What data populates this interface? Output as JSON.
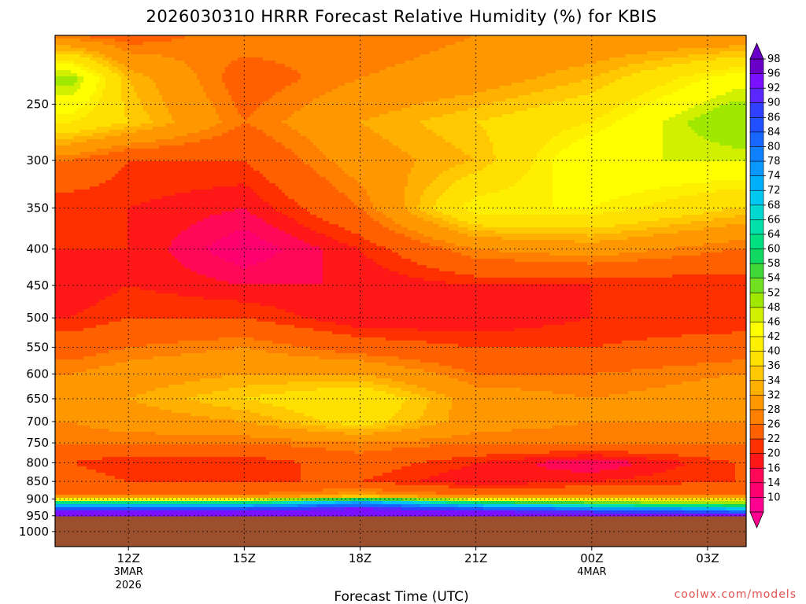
{
  "title": "2026030310 HRRR Forecast Relative Humidity (%) for KBIS",
  "credit": "coolwx.com/models",
  "colors": {
    "ground": "#9c4f2c",
    "frame": "#000000"
  },
  "chart_data": {
    "type": "heatmap",
    "title": "2026030310 HRRR Forecast Relative Humidity (%) for KBIS",
    "xlabel": "Forecast Time (UTC)",
    "ylabel": "",
    "x_ticks": [
      {
        "label": "12Z",
        "sub": [
          "3MAR",
          "2026"
        ],
        "hour": 12
      },
      {
        "label": "15Z",
        "sub": [],
        "hour": 15
      },
      {
        "label": "18Z",
        "sub": [],
        "hour": 18
      },
      {
        "label": "21Z",
        "sub": [],
        "hour": 21
      },
      {
        "label": "00Z",
        "sub": [
          "4MAR"
        ],
        "hour": 24
      },
      {
        "label": "03Z",
        "sub": [],
        "hour": 27
      }
    ],
    "xlim": [
      10.1,
      28
    ],
    "y_ticks": [
      "250",
      "300",
      "350",
      "400",
      "450",
      "500",
      "550",
      "600",
      "650",
      "700",
      "750",
      "800",
      "850",
      "900",
      "950",
      "1000"
    ],
    "ylim": [
      200,
      1050
    ],
    "y_scale": "log",
    "y_reversed": true,
    "grid": true,
    "surface_pressure": [
      952,
      952,
      952,
      952,
      952,
      952
    ],
    "levels": [
      10,
      14,
      16,
      18,
      20,
      22,
      26,
      28,
      32,
      34,
      36,
      40,
      42,
      46,
      48,
      52,
      54,
      58,
      60,
      64,
      66,
      68,
      72,
      74,
      78,
      80,
      84,
      86,
      90,
      92,
      96,
      98
    ],
    "colorbar_labels": [
      "98",
      "96",
      "92",
      "90",
      "86",
      "84",
      "80",
      "78",
      "74",
      "72",
      "68",
      "66",
      "64",
      "60",
      "58",
      "54",
      "52",
      "48",
      "46",
      "42",
      "40",
      "36",
      "34",
      "32",
      "28",
      "26",
      "22",
      "20",
      "16",
      "14",
      "10"
    ],
    "colorbar_colors": [
      "#6a00c8",
      "#7a10ff",
      "#5a28ff",
      "#3040ff",
      "#2050ff",
      "#1868ff",
      "#1080ff",
      "#0898ff",
      "#00b0ff",
      "#00c8f0",
      "#00d8d0",
      "#00e0a8",
      "#00e080",
      "#10d860",
      "#40d838",
      "#70e020",
      "#a0e800",
      "#d0f000",
      "#ffff00",
      "#fff000",
      "#ffe000",
      "#ffc800",
      "#ffb000",
      "#ff9800",
      "#ff8000",
      "#ff6000",
      "#ff3000",
      "#ff1818",
      "#ff0858",
      "#ff0070",
      "#ff0090"
    ],
    "series": [
      {
        "x": 10.5,
        "rh": [
          {
            "p": 200,
            "v": 26
          },
          {
            "p": 230,
            "v": 50
          },
          {
            "p": 265,
            "v": 40
          },
          {
            "p": 300,
            "v": 26
          },
          {
            "p": 350,
            "v": 20
          },
          {
            "p": 400,
            "v": 20
          },
          {
            "p": 450,
            "v": 18
          },
          {
            "p": 500,
            "v": 20
          },
          {
            "p": 550,
            "v": 24
          },
          {
            "p": 600,
            "v": 28
          },
          {
            "p": 650,
            "v": 30
          },
          {
            "p": 700,
            "v": 28
          },
          {
            "p": 750,
            "v": 26
          },
          {
            "p": 800,
            "v": 22
          },
          {
            "p": 850,
            "v": 24
          },
          {
            "p": 890,
            "v": 26
          },
          {
            "p": 910,
            "v": 60
          },
          {
            "p": 935,
            "v": 92
          },
          {
            "p": 950,
            "v": 96
          }
        ]
      },
      {
        "x": 12,
        "rh": [
          {
            "p": 200,
            "v": 24
          },
          {
            "p": 230,
            "v": 34
          },
          {
            "p": 265,
            "v": 36
          },
          {
            "p": 300,
            "v": 22
          },
          {
            "p": 350,
            "v": 20
          },
          {
            "p": 400,
            "v": 20
          },
          {
            "p": 450,
            "v": 20
          },
          {
            "p": 500,
            "v": 22
          },
          {
            "p": 550,
            "v": 26
          },
          {
            "p": 600,
            "v": 30
          },
          {
            "p": 650,
            "v": 32
          },
          {
            "p": 700,
            "v": 30
          },
          {
            "p": 750,
            "v": 26
          },
          {
            "p": 800,
            "v": 20
          },
          {
            "p": 850,
            "v": 22
          },
          {
            "p": 890,
            "v": 26
          },
          {
            "p": 910,
            "v": 60
          },
          {
            "p": 935,
            "v": 92
          },
          {
            "p": 950,
            "v": 96
          }
        ]
      },
      {
        "x": 15,
        "rh": [
          {
            "p": 200,
            "v": 28
          },
          {
            "p": 230,
            "v": 24
          },
          {
            "p": 265,
            "v": 26
          },
          {
            "p": 300,
            "v": 22
          },
          {
            "p": 350,
            "v": 18
          },
          {
            "p": 400,
            "v": 14
          },
          {
            "p": 450,
            "v": 18
          },
          {
            "p": 500,
            "v": 22
          },
          {
            "p": 550,
            "v": 28
          },
          {
            "p": 600,
            "v": 32
          },
          {
            "p": 650,
            "v": 36
          },
          {
            "p": 700,
            "v": 32
          },
          {
            "p": 750,
            "v": 26
          },
          {
            "p": 800,
            "v": 20
          },
          {
            "p": 850,
            "v": 22
          },
          {
            "p": 890,
            "v": 26
          },
          {
            "p": 910,
            "v": 60
          },
          {
            "p": 935,
            "v": 94
          },
          {
            "p": 950,
            "v": 96
          }
        ]
      },
      {
        "x": 18,
        "rh": [
          {
            "p": 200,
            "v": 26
          },
          {
            "p": 230,
            "v": 28
          },
          {
            "p": 265,
            "v": 32
          },
          {
            "p": 300,
            "v": 30
          },
          {
            "p": 350,
            "v": 26
          },
          {
            "p": 400,
            "v": 20
          },
          {
            "p": 450,
            "v": 18
          },
          {
            "p": 500,
            "v": 18
          },
          {
            "p": 550,
            "v": 24
          },
          {
            "p": 600,
            "v": 32
          },
          {
            "p": 650,
            "v": 40
          },
          {
            "p": 700,
            "v": 38
          },
          {
            "p": 750,
            "v": 28
          },
          {
            "p": 800,
            "v": 24
          },
          {
            "p": 850,
            "v": 22
          },
          {
            "p": 890,
            "v": 30
          },
          {
            "p": 905,
            "v": 70
          },
          {
            "p": 930,
            "v": 94
          },
          {
            "p": 950,
            "v": 96
          }
        ]
      },
      {
        "x": 21,
        "rh": [
          {
            "p": 200,
            "v": 28
          },
          {
            "p": 230,
            "v": 30
          },
          {
            "p": 265,
            "v": 36
          },
          {
            "p": 300,
            "v": 34
          },
          {
            "p": 350,
            "v": 42
          },
          {
            "p": 400,
            "v": 28
          },
          {
            "p": 450,
            "v": 20
          },
          {
            "p": 500,
            "v": 18
          },
          {
            "p": 550,
            "v": 22
          },
          {
            "p": 600,
            "v": 26
          },
          {
            "p": 650,
            "v": 30
          },
          {
            "p": 700,
            "v": 30
          },
          {
            "p": 750,
            "v": 26
          },
          {
            "p": 800,
            "v": 20
          },
          {
            "p": 850,
            "v": 18
          },
          {
            "p": 890,
            "v": 26
          },
          {
            "p": 910,
            "v": 60
          },
          {
            "p": 935,
            "v": 92
          },
          {
            "p": 950,
            "v": 96
          }
        ]
      },
      {
        "x": 24,
        "rh": [
          {
            "p": 200,
            "v": 28
          },
          {
            "p": 230,
            "v": 34
          },
          {
            "p": 265,
            "v": 40
          },
          {
            "p": 300,
            "v": 46
          },
          {
            "p": 350,
            "v": 42
          },
          {
            "p": 400,
            "v": 30
          },
          {
            "p": 450,
            "v": 20
          },
          {
            "p": 500,
            "v": 20
          },
          {
            "p": 550,
            "v": 22
          },
          {
            "p": 600,
            "v": 26
          },
          {
            "p": 650,
            "v": 28
          },
          {
            "p": 700,
            "v": 28
          },
          {
            "p": 750,
            "v": 26
          },
          {
            "p": 800,
            "v": 16
          },
          {
            "p": 850,
            "v": 20
          },
          {
            "p": 890,
            "v": 26
          },
          {
            "p": 915,
            "v": 60
          },
          {
            "p": 940,
            "v": 92
          },
          {
            "p": 950,
            "v": 96
          }
        ]
      },
      {
        "x": 27.7,
        "rh": [
          {
            "p": 200,
            "v": 28
          },
          {
            "p": 230,
            "v": 44
          },
          {
            "p": 265,
            "v": 52
          },
          {
            "p": 300,
            "v": 46
          },
          {
            "p": 350,
            "v": 36
          },
          {
            "p": 400,
            "v": 26
          },
          {
            "p": 450,
            "v": 20
          },
          {
            "p": 500,
            "v": 20
          },
          {
            "p": 550,
            "v": 24
          },
          {
            "p": 600,
            "v": 28
          },
          {
            "p": 650,
            "v": 30
          },
          {
            "p": 700,
            "v": 28
          },
          {
            "p": 750,
            "v": 26
          },
          {
            "p": 800,
            "v": 22
          },
          {
            "p": 850,
            "v": 22
          },
          {
            "p": 890,
            "v": 26
          },
          {
            "p": 920,
            "v": 60
          },
          {
            "p": 945,
            "v": 92
          },
          {
            "p": 950,
            "v": 96
          }
        ]
      }
    ]
  }
}
